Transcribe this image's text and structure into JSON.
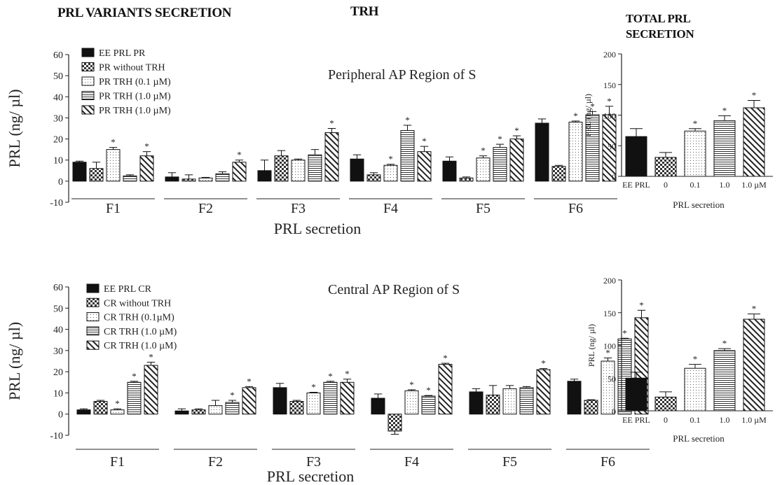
{
  "headers": {
    "variants": "PRL VARIANTS SECRETION",
    "trh": "TRH",
    "total_line1": "TOTAL PRL",
    "total_line2": "SECRETION"
  },
  "chart_data": [
    {
      "type": "bar",
      "id": "peripheral",
      "title": "Peripheral  AP Region of S",
      "xlabel": "PRL secretion",
      "ylabel": "PRL (ng/ µl)",
      "ylim": [
        -10,
        60
      ],
      "yticks": [
        -10,
        0,
        10,
        20,
        30,
        40,
        50,
        60
      ],
      "groups": [
        "F1",
        "F2",
        "F3",
        "F4",
        "F5",
        "F6"
      ],
      "series": [
        {
          "name": "EE PRL PR",
          "pattern": "solid",
          "values": [
            9,
            2,
            5,
            10.5,
            9.5,
            27.5
          ],
          "errors": [
            0.5,
            2,
            5,
            2,
            2,
            2
          ],
          "star": [
            false,
            false,
            false,
            false,
            false,
            false
          ]
        },
        {
          "name": "PR without TRH",
          "pattern": "checker",
          "values": [
            6,
            1,
            12,
            3,
            1.5,
            7
          ],
          "errors": [
            3,
            2,
            2.5,
            1,
            0.5,
            0.5
          ],
          "star": [
            false,
            false,
            false,
            false,
            false,
            false
          ]
        },
        {
          "name": "PR TRH (0.1 µM)",
          "pattern": "dots",
          "values": [
            15,
            1.5,
            10,
            7.5,
            11,
            28
          ],
          "errors": [
            1,
            0.3,
            0.5,
            0.5,
            1,
            0.5
          ],
          "star": [
            true,
            false,
            false,
            true,
            true,
            true
          ]
        },
        {
          "name": "PR TRH (1.0 µM)",
          "pattern": "hlines",
          "values": [
            2.5,
            3.5,
            12.5,
            24,
            16,
            31.5
          ],
          "errors": [
            0.5,
            1,
            2.5,
            2.5,
            1.5,
            1.5
          ],
          "star": [
            false,
            false,
            false,
            true,
            true,
            true
          ]
        },
        {
          "name": "PR TRH (1.0 µM)",
          "pattern": "diag",
          "values": [
            12,
            9,
            23,
            14,
            20,
            31.5
          ],
          "errors": [
            2,
            1,
            2,
            2.5,
            1.5,
            4
          ],
          "star": [
            true,
            true,
            true,
            true,
            true,
            true
          ]
        }
      ]
    },
    {
      "type": "bar",
      "id": "central",
      "title": "Central  AP Region of S",
      "xlabel": "PRL secretion",
      "ylabel": "PRL (ng/ µl)",
      "ylim": [
        -10,
        60
      ],
      "yticks": [
        -10,
        0,
        10,
        20,
        30,
        40,
        50,
        60
      ],
      "groups": [
        "F1",
        "F2",
        "F3",
        "F4",
        "F5",
        "F6"
      ],
      "series": [
        {
          "name": "EE PRL CR",
          "pattern": "solid",
          "values": [
            2,
            1.5,
            12.5,
            7.5,
            10.5,
            15.5
          ],
          "errors": [
            0.5,
            1,
            2,
            2,
            1.5,
            1
          ],
          "star": [
            false,
            false,
            false,
            false,
            false,
            false
          ]
        },
        {
          "name": "CR without TRH",
          "pattern": "checker",
          "values": [
            6,
            2,
            6,
            -8,
            9,
            6.5
          ],
          "errors": [
            0.5,
            0.5,
            0.5,
            1.5,
            4.5,
            0.3
          ],
          "star": [
            false,
            false,
            false,
            false,
            false,
            false
          ]
        },
        {
          "name": "CR TRH (0.1µM)",
          "pattern": "dots",
          "values": [
            2,
            4,
            10,
            11,
            12,
            25
          ],
          "errors": [
            0.5,
            2.5,
            0.3,
            0.5,
            1.5,
            1.5
          ],
          "star": [
            true,
            false,
            true,
            true,
            false,
            true
          ]
        },
        {
          "name": "CR TRH (1.0 µM)",
          "pattern": "hlines",
          "values": [
            15,
            5.5,
            15,
            8.5,
            12.5,
            35.5
          ],
          "errors": [
            0.5,
            1,
            0.5,
            0.3,
            0.5,
            0.3
          ],
          "star": [
            true,
            true,
            true,
            true,
            false,
            true
          ]
        },
        {
          "name": "CR TRH (1.0 µM)",
          "pattern": "diag",
          "values": [
            23,
            12.5,
            15,
            23.5,
            21,
            45.5
          ],
          "errors": [
            1.5,
            0.5,
            1.5,
            0.5,
            0.5,
            3.5
          ],
          "star": [
            true,
            true,
            true,
            true,
            true,
            true
          ]
        }
      ]
    },
    {
      "type": "bar",
      "id": "total-top",
      "title": "",
      "xlabel": "PRL secretion",
      "ylabel": "PRL (ng/ µl)",
      "ylim": [
        0,
        200
      ],
      "yticks": [
        0,
        50,
        100,
        150,
        200
      ],
      "categories": [
        "EE PRL",
        "0",
        "0.1",
        "1.0",
        "1.0 µM"
      ],
      "patterns": [
        "solid",
        "checker",
        "dots",
        "hlines",
        "diag"
      ],
      "values": [
        65,
        31,
        74,
        91,
        112
      ],
      "errors": [
        13,
        8,
        4,
        8,
        12
      ],
      "star": [
        false,
        false,
        true,
        true,
        true
      ]
    },
    {
      "type": "bar",
      "id": "total-bottom",
      "title": "",
      "xlabel": "PRL secretion",
      "ylabel": "PRL (ng/ µl)",
      "ylim": [
        0,
        200
      ],
      "yticks": [
        0,
        50,
        100,
        150,
        200
      ],
      "categories": [
        "EE PRL",
        "0",
        "0.1",
        "1.0",
        "1.0 µM"
      ],
      "patterns": [
        "solid",
        "checker",
        "dots",
        "hlines",
        "diag"
      ],
      "values": [
        50,
        21,
        65,
        92,
        140
      ],
      "errors": [
        9,
        8,
        6,
        3,
        8
      ],
      "star": [
        false,
        false,
        true,
        true,
        true
      ]
    }
  ]
}
